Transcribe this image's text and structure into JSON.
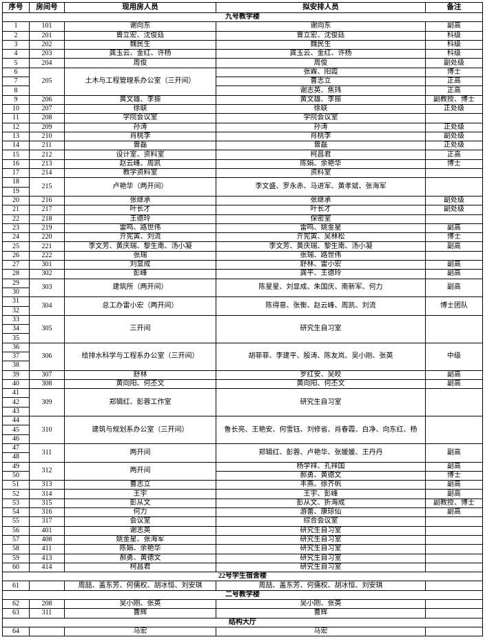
{
  "header": [
    "序号",
    "房间号",
    "现用房人员",
    "拟安排人员",
    "备注"
  ],
  "sections": [
    {
      "title": "九号教学楼",
      "rooms": [
        {
          "room": "101",
          "current": "谢向东",
          "rows": [
            {
              "seq": 1,
              "planned": "谢向东",
              "note": "副高"
            }
          ]
        },
        {
          "room": "201",
          "current": "曾立宏、沈俊廷",
          "rows": [
            {
              "seq": 2,
              "planned": "曾立宏、沈俊廷",
              "note": "科级"
            }
          ]
        },
        {
          "room": "202",
          "current": "魏民生",
          "rows": [
            {
              "seq": 3,
              "planned": "魏民生",
              "note": "科级"
            }
          ]
        },
        {
          "room": "203",
          "current": "龚玉云、金红、许杨",
          "rows": [
            {
              "seq": 4,
              "planned": "龚玉云、金红、许杨",
              "note": "科级"
            }
          ]
        },
        {
          "room": "204",
          "current": "周俊",
          "rows": [
            {
              "seq": 5,
              "planned": "周俊",
              "note": "副处级"
            }
          ]
        },
        {
          "room": "205",
          "current": "土木与工程管理系办公室（三开间）",
          "rows": [
            {
              "seq": 6,
              "planned": "张霖、阳霞",
              "note": "博士"
            },
            {
              "seq": 7,
              "planned": "曹志立",
              "note": "正高"
            },
            {
              "seq": 8,
              "planned": "谢志英、焦玮",
              "note": "正高"
            }
          ]
        },
        {
          "room": "206",
          "current": "黄文雄、李振",
          "rows": [
            {
              "seq": 9,
              "planned": "黄文雄、李振",
              "note": "副教授、博士"
            }
          ]
        },
        {
          "room": "207",
          "current": "徐联",
          "rows": [
            {
              "seq": 10,
              "planned": "徐联",
              "note": "正处级"
            }
          ]
        },
        {
          "room": "208",
          "current": "学院会议室",
          "rows": [
            {
              "seq": 11,
              "planned": "学院会议室"
            }
          ]
        },
        {
          "room": "209",
          "current": "孙涛",
          "rows": [
            {
              "seq": 12,
              "planned": "孙涛",
              "note": "正处级"
            }
          ]
        },
        {
          "room": "210",
          "current": "肖桃李",
          "rows": [
            {
              "seq": 13,
              "planned": "肖桃李",
              "note": "副处级"
            }
          ]
        },
        {
          "room": "211",
          "current": "曾磊",
          "rows": [
            {
              "seq": 14,
              "planned": "曾磊",
              "note": "正处级"
            }
          ]
        },
        {
          "room": "212",
          "current": "设计室、资料室",
          "rows": [
            {
              "seq": 15,
              "planned": "柯昌君",
              "note": "正高"
            }
          ]
        },
        {
          "room": "213",
          "current": "赵云峰、周凯",
          "rows": [
            {
              "seq": 16,
              "planned": "陈娟、余艳华",
              "note": "博士"
            }
          ]
        },
        {
          "room": "214",
          "current": "教学资料室",
          "rows": [
            {
              "seq": 17,
              "planned": "资料室"
            }
          ]
        },
        {
          "room": "215",
          "current": "卢艳华（两开间）",
          "planned": "李文盛、罗永赤、马进军、黄孝斌、张海军",
          "rows": [
            {
              "seq": 18
            },
            {
              "seq": 19
            }
          ]
        },
        {
          "room": "216",
          "current": "张继承",
          "rows": [
            {
              "seq": 20,
              "planned": "张继承",
              "note": "副处级"
            }
          ]
        },
        {
          "room": "217",
          "current": "叶长才",
          "rows": [
            {
              "seq": 21,
              "planned": "叶长才",
              "note": "副处级"
            }
          ]
        },
        {
          "room": "218",
          "current": "王德玲",
          "rows": [
            {
              "seq": 22,
              "planned": "保密室"
            }
          ]
        },
        {
          "room": "219",
          "current": "雷鸣、路世伟",
          "rows": [
            {
              "seq": 23,
              "planned": "雷鸣、姚金星",
              "note": "副高"
            }
          ]
        },
        {
          "room": "220",
          "current": "亓宪寅、刘流",
          "rows": [
            {
              "seq": 24,
              "planned": "亓宪寅、吴林松",
              "note": "博士"
            }
          ]
        },
        {
          "room": "221",
          "current": "李文芳、黄庆瑞、黎生南、汤小凝",
          "rows": [
            {
              "seq": 25,
              "planned": "李文芳、黄庆瑞、黎生南、汤小凝",
              "note": "副高"
            }
          ]
        },
        {
          "room": "222",
          "current": "张瑞",
          "rows": [
            {
              "seq": 26,
              "planned": "张瑞、路世伟"
            }
          ]
        },
        {
          "room": "301",
          "current": "刘显成",
          "rows": [
            {
              "seq": 27,
              "planned": "舒林、雷小宏",
              "note": "副高"
            }
          ]
        },
        {
          "room": "302",
          "current": "彭峰",
          "rows": [
            {
              "seq": 28,
              "planned": "龚平、王德玲",
              "note": "副高"
            }
          ]
        },
        {
          "room": "303",
          "current": "建筑所（两开间）",
          "planned": "陈星星、刘显成、朱国庆、南新军、何力",
          "note": "副高",
          "rows": [
            {
              "seq": 29
            },
            {
              "seq": 30
            }
          ]
        },
        {
          "room": "304",
          "current": "总工办雷小宏（两开间）",
          "planned": "陈得意、张衡、赵云峰、周凯、刘流",
          "note": "博士团队",
          "rows": [
            {
              "seq": 31
            },
            {
              "seq": 32
            }
          ]
        },
        {
          "room": "305",
          "current": "三开间",
          "planned": "研究生自习室",
          "rows": [
            {
              "seq": 33
            },
            {
              "seq": 34
            },
            {
              "seq": 35
            }
          ]
        },
        {
          "room": "306",
          "current": "给排水科学与工程系办公室（三开间）",
          "planned": "胡菲菲、李建平、殷涛、陈友岚、吴小刚、张英",
          "note": "中级",
          "rows": [
            {
              "seq": 36
            },
            {
              "seq": 37
            },
            {
              "seq": 38
            }
          ]
        },
        {
          "room": "307",
          "current": "舒林",
          "rows": [
            {
              "seq": 39,
              "planned": "罗红安、吴皎",
              "note": "副高"
            }
          ]
        },
        {
          "room": "308",
          "current": "黄向阳、何丕文",
          "rows": [
            {
              "seq": 40,
              "planned": "黄向阳、何丕文",
              "note": "副高"
            }
          ]
        },
        {
          "room": "309",
          "current": "郑辑红、彭蓉工作室",
          "planned": "研究生自习室",
          "rows": [
            {
              "seq": 41
            },
            {
              "seq": 42
            },
            {
              "seq": 43
            }
          ]
        },
        {
          "room": "310",
          "current": "建筑与规划系办公室（三开间）",
          "planned": "鲁长亮、王艳安、何雪钰、刘修省、肖春霞、白净、向东红、杨",
          "rows": [
            {
              "seq": 44
            },
            {
              "seq": 45
            },
            {
              "seq": 46
            }
          ]
        },
        {
          "room": "311",
          "current": "两开间",
          "planned": "郑辑红、彭蓉、卢艳华、张媛媛、王丹丹",
          "note": "副高",
          "rows": [
            {
              "seq": 47
            },
            {
              "seq": 48
            }
          ]
        },
        {
          "room": "312",
          "current": "两开间",
          "rows": [
            {
              "seq": 49,
              "planned": "杨学祥、孔祥国",
              "note": "副高"
            },
            {
              "seq": 50,
              "planned": "郝勇、黄德文",
              "note": "博士"
            }
          ]
        },
        {
          "room": "313",
          "current": "曹志立",
          "rows": [
            {
              "seq": 51,
              "planned": "丰燕、徐齐帆",
              "note": "副高"
            }
          ]
        },
        {
          "room": "314",
          "current": "王宇",
          "rows": [
            {
              "seq": 52,
              "planned": "王宇、彭峰",
              "note": "副高"
            }
          ]
        },
        {
          "room": "315",
          "current": "彭从文",
          "rows": [
            {
              "seq": 53,
              "planned": "彭从文、折海成",
              "note": "副教授、博士"
            }
          ]
        },
        {
          "room": "316",
          "current": "何力",
          "rows": [
            {
              "seq": 54,
              "planned": "游蕾、康琼仙",
              "note": "副高"
            }
          ]
        },
        {
          "room": "317",
          "current": "会议室",
          "rows": [
            {
              "seq": 55,
              "planned": "综合会议室"
            }
          ]
        },
        {
          "room": "401",
          "current": "谢志英",
          "rows": [
            {
              "seq": 56,
              "planned": "研究生自习室"
            }
          ]
        },
        {
          "room": "408",
          "current": "姚金星、张海军",
          "rows": [
            {
              "seq": 57,
              "planned": "研究生自习室"
            }
          ]
        },
        {
          "room": "411",
          "current": "陈娟、余艳华",
          "rows": [
            {
              "seq": 58,
              "planned": "研究生自习室"
            }
          ]
        },
        {
          "room": "413",
          "current": "郝勇、黄德文",
          "rows": [
            {
              "seq": 59,
              "planned": "研究生自习室"
            }
          ]
        },
        {
          "room": "414",
          "current": "柯昌君",
          "rows": [
            {
              "seq": 60,
              "planned": "研究生自习室"
            }
          ]
        }
      ]
    },
    {
      "title": "22号学生宿舍楼",
      "rooms": [
        {
          "current": "周喆、盖东芳、何儒权、胡冰恒、刘安琪",
          "rows": [
            {
              "seq": 61,
              "planned": "周喆、盖东芳、何儒权、胡冰恒、刘安琪"
            }
          ]
        }
      ]
    },
    {
      "title": "二号教学楼",
      "rooms": [
        {
          "room": "208",
          "current": "吴小刚、张英",
          "rows": [
            {
              "seq": 62,
              "planned": "吴小刚、张英"
            }
          ]
        },
        {
          "room": "311",
          "current": "曹辉",
          "rows": [
            {
              "seq": 63,
              "planned": "曹辉"
            }
          ]
        }
      ]
    },
    {
      "title": "结构大厅",
      "rooms": [
        {
          "current": "马宏",
          "rows": [
            {
              "seq": 64,
              "planned": "马宏"
            }
          ]
        }
      ]
    }
  ]
}
